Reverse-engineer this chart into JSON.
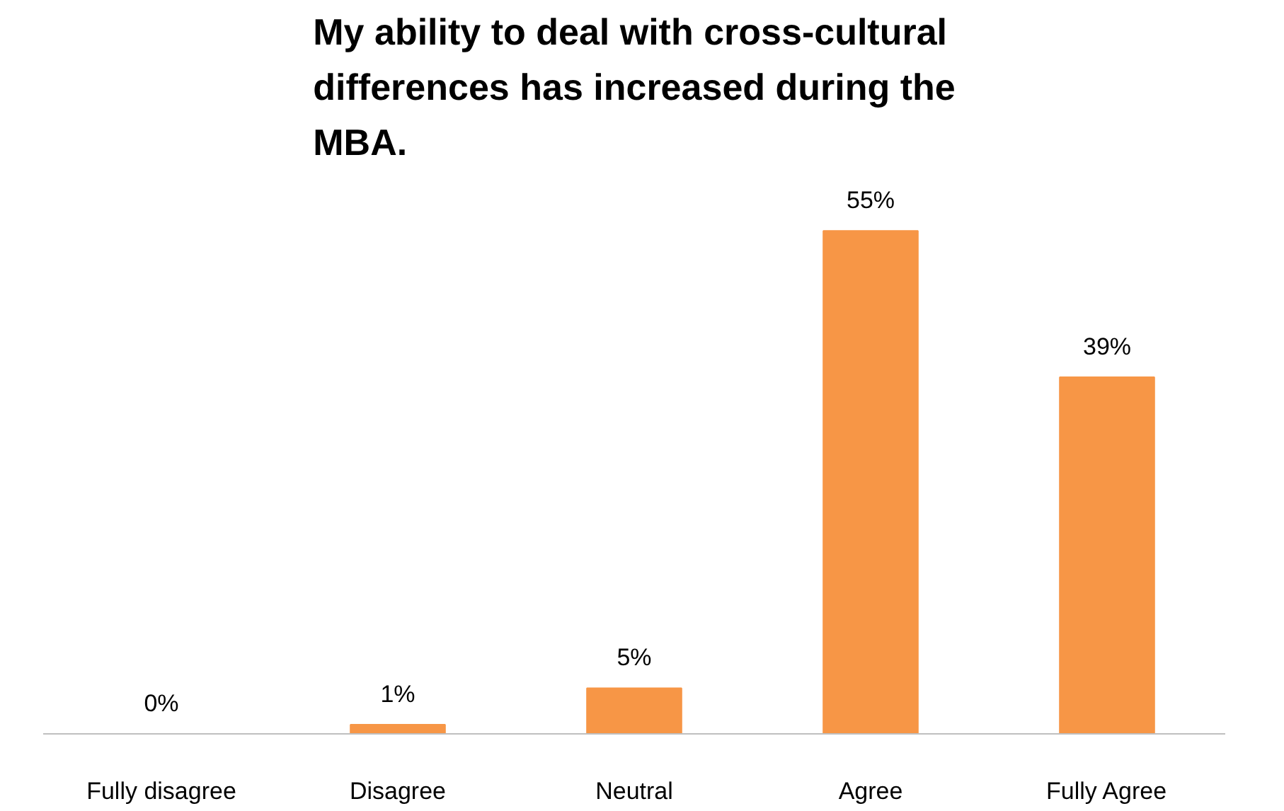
{
  "chart_data": {
    "type": "bar",
    "title": "My ability to deal with cross-cultural differences has increased during the MBA.",
    "categories": [
      "Fully disagree",
      "Disagree",
      "Neutral",
      "Agree",
      "Fully Agree"
    ],
    "values": [
      0,
      1,
      5,
      55,
      39
    ],
    "value_labels": [
      "0%",
      "1%",
      "5%",
      "55%",
      "39%"
    ],
    "color": "#f79646",
    "grid": false,
    "tick_labels": "x"
  }
}
